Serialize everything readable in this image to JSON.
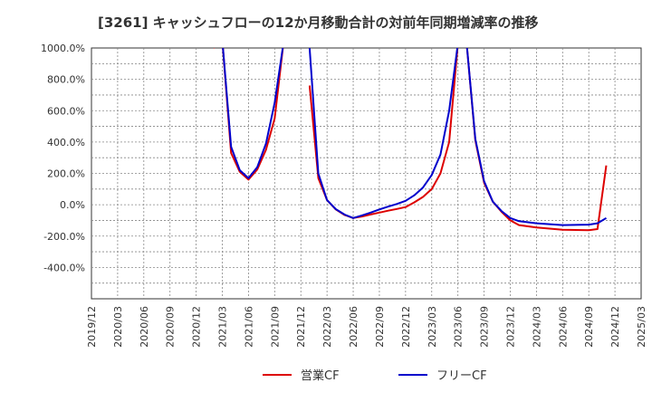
{
  "chart_data": {
    "type": "line",
    "title": "[3261]  キャッシュフローの12か月移動合計の対前年同期増減率の推移",
    "xlabel": "",
    "ylabel": "",
    "ylim": [
      -600,
      1000
    ],
    "y_ticks": [
      "1000.0%",
      "800.0%",
      "600.0%",
      "400.0%",
      "200.0%",
      "0.0%",
      "-200.0%",
      "-400.0%"
    ],
    "y_tick_values": [
      1000,
      800,
      600,
      400,
      200,
      0,
      -200,
      -400
    ],
    "x_ticks": [
      "2019/12",
      "2020/03",
      "2020/06",
      "2020/09",
      "2020/12",
      "2021/03",
      "2021/06",
      "2021/09",
      "2021/12",
      "2022/03",
      "2022/06",
      "2022/09",
      "2022/12",
      "2023/03",
      "2023/06",
      "2023/09",
      "2023/12",
      "2024/03",
      "2024/06",
      "2024/09",
      "2024/12",
      "2025/03"
    ],
    "grid": true,
    "legend_position": "bottom",
    "series": [
      {
        "name": "営業CF",
        "color": "#dd0000",
        "segments": [
          [
            [
              "2021/02",
              1000
            ],
            [
              "2021/03",
              1050
            ],
            [
              "2021/04",
              330
            ],
            [
              "2021/05",
              210
            ],
            [
              "2021/06",
              160
            ],
            [
              "2021/07",
              225
            ],
            [
              "2021/08",
              350
            ],
            [
              "2021/09",
              550
            ],
            [
              "2021/10",
              1030
            ]
          ],
          [
            [
              "2022/01",
              760
            ],
            [
              "2022/02",
              170
            ],
            [
              "2022/03",
              30
            ],
            [
              "2022/04",
              -30
            ],
            [
              "2022/05",
              -65
            ],
            [
              "2022/06",
              -85
            ],
            [
              "2022/07",
              -75
            ],
            [
              "2022/08",
              -62
            ],
            [
              "2022/09",
              -50
            ],
            [
              "2022/10",
              -38
            ],
            [
              "2022/11",
              -27
            ],
            [
              "2022/12",
              -15
            ],
            [
              "2023/01",
              15
            ],
            [
              "2023/02",
              50
            ],
            [
              "2023/03",
              100
            ],
            [
              "2023/04",
              200
            ],
            [
              "2023/05",
              400
            ],
            [
              "2023/06",
              1030
            ]
          ],
          [
            [
              "2023/07",
              1030
            ],
            [
              "2023/08",
              410
            ],
            [
              "2023/09",
              140
            ],
            [
              "2023/10",
              20
            ],
            [
              "2023/11",
              -45
            ],
            [
              "2023/12",
              -100
            ],
            [
              "2024/01",
              -130
            ],
            [
              "2024/03",
              -145
            ],
            [
              "2024/06",
              -160
            ],
            [
              "2024/09",
              -162
            ],
            [
              "2024/10",
              -155
            ],
            [
              "2024/11",
              250
            ]
          ]
        ]
      },
      {
        "name": "フリーCF",
        "color": "#0000cc",
        "segments": [
          [
            [
              "2021/03",
              1050
            ],
            [
              "2021/04",
              370
            ],
            [
              "2021/05",
              220
            ],
            [
              "2021/06",
              170
            ],
            [
              "2021/07",
              240
            ],
            [
              "2021/08",
              390
            ],
            [
              "2021/09",
              650
            ],
            [
              "2021/10",
              1030
            ]
          ],
          [
            [
              "2022/01",
              1000
            ],
            [
              "2022/02",
              200
            ],
            [
              "2022/03",
              30
            ],
            [
              "2022/04",
              -28
            ],
            [
              "2022/05",
              -62
            ],
            [
              "2022/06",
              -85
            ],
            [
              "2022/07",
              -68
            ],
            [
              "2022/08",
              -50
            ],
            [
              "2022/09",
              -30
            ],
            [
              "2022/10",
              -12
            ],
            [
              "2022/11",
              5
            ],
            [
              "2022/12",
              25
            ],
            [
              "2023/01",
              60
            ],
            [
              "2023/02",
              110
            ],
            [
              "2023/03",
              190
            ],
            [
              "2023/04",
              320
            ],
            [
              "2023/05",
              600
            ],
            [
              "2023/06",
              1030
            ]
          ],
          [
            [
              "2023/07",
              1030
            ],
            [
              "2023/08",
              420
            ],
            [
              "2023/09",
              150
            ],
            [
              "2023/10",
              20
            ],
            [
              "2023/11",
              -40
            ],
            [
              "2023/12",
              -85
            ],
            [
              "2024/01",
              -105
            ],
            [
              "2024/03",
              -118
            ],
            [
              "2024/06",
              -130
            ],
            [
              "2024/09",
              -127
            ],
            [
              "2024/10",
              -118
            ],
            [
              "2024/11",
              -85
            ]
          ]
        ]
      }
    ]
  }
}
